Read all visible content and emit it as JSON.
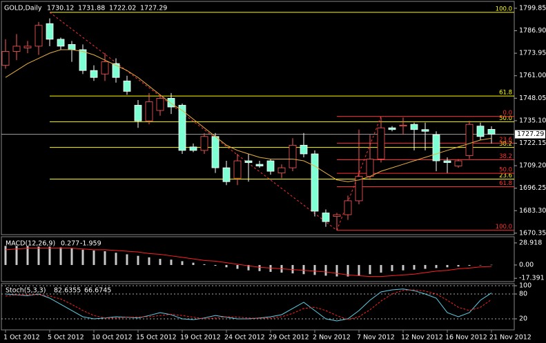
{
  "chart_data": [
    {
      "type": "candlestick",
      "title": "GOLD,Daily",
      "categories": [
        "1 Oct 2012",
        null,
        null,
        null,
        "5 Oct 2012",
        null,
        null,
        null,
        "10 Oct 2012",
        null,
        null,
        null,
        "15 Oct 2012",
        null,
        null,
        null,
        "19 Oct 2012",
        null,
        null,
        null,
        "24 Oct 2012",
        null,
        null,
        null,
        "29 Oct 2012",
        null,
        null,
        null,
        "2 Nov 2012",
        null,
        null,
        null,
        "7 Nov 2012",
        null,
        null,
        null,
        "12 Nov 2012",
        null,
        null,
        null,
        "16 Nov 2012",
        null,
        null,
        null,
        "21 Nov 2012"
      ],
      "open": [
        1767,
        1775,
        1777,
        1778,
        1791,
        1782,
        1779,
        1776,
        1764,
        1762,
        1768,
        1758,
        1744,
        1735,
        1741,
        1748,
        1744,
        1720,
        1718,
        1726,
        1708,
        1702,
        1712,
        1710,
        1712,
        1705,
        1708,
        1721,
        1716,
        1682,
        1680,
        1681,
        1689,
        1703,
        1713,
        1731,
        1732,
        1733,
        1730,
        1727,
        1712,
        1709,
        1715,
        1732,
        1730.12
      ],
      "high": [
        1782,
        1785,
        1781,
        1792,
        1794,
        1783,
        1781,
        1779,
        1767,
        1774,
        1771,
        1761,
        1747,
        1751,
        1750,
        1751,
        1745,
        1722,
        1728,
        1728,
        1712,
        1716,
        1716,
        1712,
        1713,
        1710,
        1725,
        1728,
        1718,
        1684,
        1682,
        1692,
        1730,
        1727,
        1737,
        1732,
        1737,
        1734,
        1734,
        1729,
        1714,
        1713,
        1735,
        1734,
        1731.88
      ],
      "low": [
        1765,
        1770,
        1774,
        1773,
        1778,
        1776,
        1769,
        1762,
        1758,
        1758,
        1757,
        1750,
        1731,
        1733,
        1738,
        1739,
        1716,
        1717,
        1716,
        1705,
        1698,
        1698,
        1700,
        1708,
        1704,
        1702,
        1706,
        1714,
        1680,
        1674,
        1672,
        1678,
        1687,
        1701,
        1711,
        1729,
        1727,
        1718,
        1718,
        1706,
        1705,
        1708,
        1713,
        1724,
        1722.02
      ],
      "close": [
        1775,
        1778,
        1778,
        1790,
        1782,
        1778,
        1776,
        1764,
        1760,
        1769,
        1760,
        1752,
        1735,
        1746,
        1748,
        1743,
        1718,
        1718,
        1726,
        1708,
        1700,
        1712,
        1711,
        1709,
        1706,
        1708,
        1721,
        1716,
        1683,
        1677,
        1681,
        1689,
        1703,
        1713,
        1731,
        1730,
        1732.5,
        1730,
        1729,
        1712,
        1711,
        1712,
        1733,
        1726,
        1727.29
      ],
      "up_color": "#ff5a5a",
      "down_color": "#7fffd4",
      "series": [
        {
          "values": [
            1760,
            1764,
            1768,
            1771,
            1774,
            1776,
            1776,
            1775,
            1773,
            1770,
            1767,
            1764,
            1760,
            1755,
            1750,
            1745,
            1741,
            1736,
            1731,
            1726,
            1721,
            1718,
            1716,
            1714,
            1713,
            1713,
            1713,
            1712,
            1709,
            1705,
            1701,
            1700,
            1701,
            1703,
            1706,
            1708,
            1710,
            1712,
            1714,
            1716,
            1718,
            1720,
            1722,
            1724,
            1725
          ],
          "color": "#e8b040"
        }
      ],
      "fib_sets": [
        {
          "color": "#ffff00",
          "levels": [
            {
              "value": 1797.5,
              "label": "100.0"
            },
            {
              "value": 1749.3,
              "label": "61.8"
            },
            {
              "value": 1734.5,
              "label": "50.0"
            },
            {
              "value": 1719.7,
              "label": "38.2"
            },
            {
              "value": 1701.5,
              "label": "23.6"
            }
          ]
        },
        {
          "color": "#ff3030",
          "levels": [
            {
              "value": 1737.6,
              "label": "0.0"
            },
            {
              "value": 1722.1,
              "label": "23.6"
            },
            {
              "value": 1712.6,
              "label": "38.2"
            },
            {
              "value": 1704.8,
              "label": "50.0"
            },
            {
              "value": 1697.1,
              "label": "61.8"
            },
            {
              "value": 1672,
              "label": "100.0"
            }
          ]
        }
      ],
      "ylim": [
        1669.5,
        1803.8
      ],
      "yticks": [
        1799.85,
        {
          "value": 1786.9,
          "label": "1786.90"
        },
        1773.95,
        {
          "value": 1761,
          "label": "1761.00"
        },
        1748.05,
        {
          "value": 1735.1,
          "label": "1735.10"
        },
        1722.15,
        {
          "value": 1709.2,
          "label": "1709.20"
        },
        1696.25,
        {
          "value": 1683.3,
          "label": "1683.30"
        },
        1670.35
      ]
    },
    {
      "type": "oscillator",
      "title": "MACD(12,26,9)",
      "series": [
        {
          "style": "bar",
          "color": "#c8c8c8",
          "values": [
            25,
            25,
            25,
            24,
            24,
            23,
            22,
            20,
            19,
            18,
            16,
            14,
            12,
            10,
            8,
            7,
            5,
            3,
            1,
            -1,
            -3,
            -5,
            -7,
            -8,
            -9,
            -10,
            -11,
            -12,
            -13,
            -14,
            -15,
            -15,
            -14,
            -12,
            -10,
            -8,
            -7,
            -6,
            -5,
            -4,
            -3,
            -2,
            -1,
            0,
            0.277
          ]
        },
        {
          "style": "line",
          "color": "#ff2020",
          "values": [
            20,
            21,
            22,
            22,
            22,
            22,
            22,
            21,
            20,
            20,
            19,
            18,
            17,
            15,
            14,
            12,
            10,
            8,
            6,
            5,
            3,
            1,
            -1,
            -3,
            -4,
            -5,
            -6,
            -7,
            -8,
            -9,
            -11,
            -13,
            -14,
            -15,
            -15,
            -14,
            -13,
            -12,
            -10,
            -8,
            -7,
            -5,
            -4,
            -2.5,
            -1.959
          ]
        }
      ],
      "ylim": [
        -21.7,
        37.0
      ],
      "yticks": [
        28.918,
        {
          "value": 0,
          "label": "0.00"
        },
        -17.391
      ],
      "grid": false
    },
    {
      "type": "oscillator",
      "title": "Stoch(5,3,3)",
      "series": [
        {
          "style": "line",
          "color": "#5fd0e8",
          "values": [
            80,
            78,
            76,
            80,
            70,
            55,
            40,
            25,
            20,
            22,
            25,
            24,
            22,
            28,
            35,
            30,
            20,
            18,
            22,
            28,
            24,
            20,
            20,
            22,
            25,
            30,
            45,
            60,
            40,
            20,
            15,
            20,
            40,
            65,
            85,
            90,
            92,
            88,
            80,
            70,
            35,
            25,
            35,
            65,
            82.6355
          ]
        },
        {
          "style": "dash",
          "color": "#ff2020",
          "values": [
            75,
            78,
            78,
            78,
            75,
            68,
            55,
            40,
            28,
            22,
            22,
            24,
            24,
            25,
            28,
            31,
            28,
            24,
            20,
            22,
            25,
            24,
            22,
            21,
            22,
            25,
            33,
            45,
            48,
            40,
            28,
            18,
            25,
            42,
            63,
            80,
            89,
            90,
            87,
            80,
            65,
            48,
            40,
            48,
            66.6745
          ]
        }
      ],
      "ylim": [
        -6.7,
        105
      ],
      "yticks": [
        100,
        80,
        20
      ],
      "grid": true
    }
  ]
}
